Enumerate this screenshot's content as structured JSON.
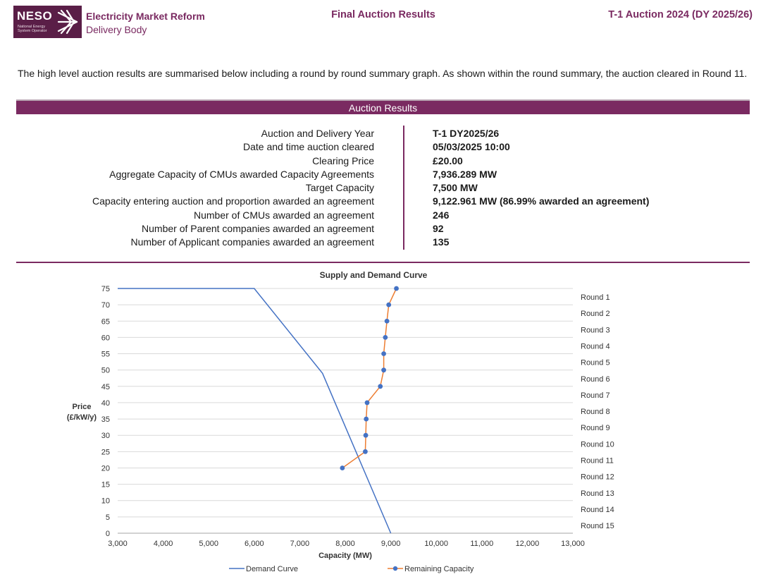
{
  "header": {
    "logo_text": "NESO",
    "logo_subtitle": "National Energy System Operator",
    "org_line1": "Electricity Market Reform",
    "org_line2": "Delivery Body",
    "doc_title": "Final Auction Results",
    "auction_name": "T-1 Auction 2024 (DY 2025/26)"
  },
  "intro_text": "The high level auction results are summarised below including a round by round summary graph. As shown within the round summary, the auction cleared in Round 11.",
  "results": {
    "heading": "Auction Results",
    "rows": [
      {
        "label": "Auction and Delivery Year",
        "value": "T-1 DY2025/26"
      },
      {
        "label": "Date and time auction cleared",
        "value": "05/03/2025 10:00"
      },
      {
        "label": "Clearing Price",
        "value": "£20.00"
      },
      {
        "label": "Aggregate Capacity of CMUs awarded Capacity Agreements",
        "value": "7,936.289 MW"
      },
      {
        "label": "Target Capacity",
        "value": "7,500 MW"
      },
      {
        "label": "Capacity entering auction and proportion awarded an agreement",
        "value": "9,122.961 MW (86.99% awarded an agreement)"
      },
      {
        "label": "Number of CMUs awarded an agreement",
        "value": "246"
      },
      {
        "label": "Number of Parent companies awarded an agreement",
        "value": "92"
      },
      {
        "label": "Number of Applicant companies awarded an agreement",
        "value": "135"
      }
    ]
  },
  "chart_data": {
    "type": "line",
    "title": "Supply and Demand Curve",
    "xlabel": "Capacity (MW)",
    "ylabel": "Price (£/kW/y)",
    "xlim": [
      3000,
      13000
    ],
    "ylim": [
      0,
      75
    ],
    "x_ticks": [
      3000,
      4000,
      5000,
      6000,
      7000,
      8000,
      9000,
      10000,
      11000,
      12000,
      13000
    ],
    "x_tick_labels": [
      "3,000",
      "4,000",
      "5,000",
      "6,000",
      "7,000",
      "8,000",
      "9,000",
      "10,000",
      "11,000",
      "12,000",
      "13,000"
    ],
    "y_ticks": [
      0,
      5,
      10,
      15,
      20,
      25,
      30,
      35,
      40,
      45,
      50,
      55,
      60,
      65,
      70,
      75
    ],
    "grid": "horizontal",
    "right_labels": [
      "Round 1",
      "Round 2",
      "Round 3",
      "Round 4",
      "Round 5",
      "Round 6",
      "Round 7",
      "Round 8",
      "Round 9",
      "Round 10",
      "Round 11",
      "Round 12",
      "Round 13",
      "Round 14",
      "Round 15"
    ],
    "series": [
      {
        "name": "Demand Curve",
        "color": "#4472c4",
        "marker": false,
        "points": [
          [
            3000,
            75
          ],
          [
            6000,
            75
          ],
          [
            7500,
            49
          ],
          [
            9000,
            0
          ]
        ]
      },
      {
        "name": "Remaining Capacity",
        "color": "#ed7d31",
        "marker_color": "#4472c4",
        "marker": true,
        "points": [
          [
            9123,
            75
          ],
          [
            8955,
            70
          ],
          [
            8915,
            65
          ],
          [
            8880,
            60
          ],
          [
            8845,
            55
          ],
          [
            8845,
            50
          ],
          [
            8770,
            45
          ],
          [
            8480,
            40
          ],
          [
            8460,
            35
          ],
          [
            8450,
            30
          ],
          [
            8440,
            25
          ],
          [
            7936,
            20
          ]
        ]
      }
    ],
    "legend": [
      "Demand Curve",
      "Remaining Capacity"
    ],
    "legend_position": "bottom"
  }
}
